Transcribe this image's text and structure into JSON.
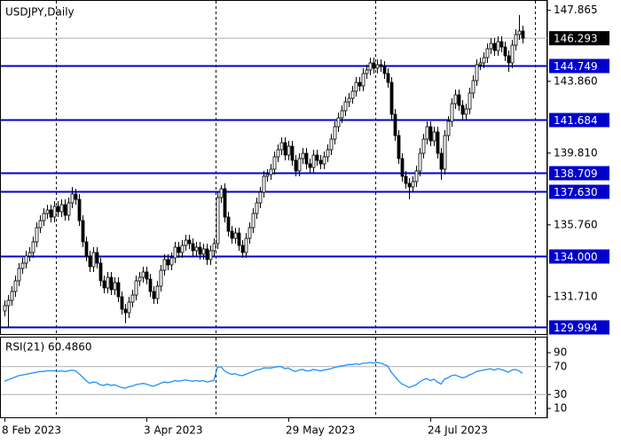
{
  "chart_data": {
    "type": "candlestick",
    "title": "USDJPY,Daily",
    "categories": [
      "8 Feb 2023",
      null,
      null,
      null,
      null,
      null,
      null,
      null,
      null,
      null,
      null,
      null,
      null,
      null,
      null,
      null,
      null,
      null,
      null,
      null,
      null,
      null,
      null,
      null,
      null,
      null,
      null,
      null,
      null,
      null,
      null,
      null,
      null,
      null,
      null,
      null,
      null,
      null,
      null,
      null,
      "3 Apr 2023",
      null,
      null,
      null,
      null,
      null,
      null,
      null,
      null,
      null,
      null,
      null,
      null,
      null,
      null,
      null,
      null,
      null,
      null,
      null,
      null,
      null,
      null,
      null,
      null,
      null,
      null,
      null,
      null,
      null,
      null,
      null,
      null,
      null,
      null,
      null,
      null,
      null,
      null,
      null,
      "29 May 2023",
      null,
      null,
      null,
      null,
      null,
      null,
      null,
      null,
      null,
      null,
      null,
      null,
      null,
      null,
      null,
      null,
      null,
      null,
      null,
      null,
      null,
      null,
      null,
      null,
      null,
      null,
      null,
      null,
      null,
      null,
      null,
      null,
      null,
      null,
      null,
      null,
      null,
      null,
      null,
      "24 Jul 2023",
      null,
      null,
      null,
      null,
      null,
      null,
      null,
      null,
      null,
      null,
      null,
      null,
      null,
      null,
      null,
      null,
      null,
      null,
      null,
      null,
      null,
      null,
      null,
      null,
      null,
      null
    ],
    "open": [
      130.9,
      131.2,
      131.5,
      132.0,
      132.6,
      133.3,
      133.6,
      134.0,
      134.2,
      134.8,
      135.6,
      136.0,
      136.4,
      136.6,
      136.2,
      136.8,
      136.5,
      136.9,
      136.3,
      137.0,
      137.5,
      137.2,
      136.0,
      134.8,
      134.0,
      133.4,
      134.2,
      133.6,
      132.6,
      132.2,
      132.8,
      132.1,
      132.5,
      131.7,
      131.0,
      130.8,
      131.4,
      131.8,
      132.6,
      132.8,
      133.1,
      132.7,
      132.0,
      131.6,
      132.3,
      133.2,
      133.8,
      133.5,
      133.9,
      134.5,
      134.2,
      134.6,
      134.9,
      134.7,
      134.3,
      134.5,
      134.1,
      134.4,
      133.8,
      134.3,
      134.7,
      137.3,
      137.8,
      136.2,
      135.4,
      135.0,
      135.3,
      134.6,
      134.2,
      135.0,
      135.6,
      136.4,
      137.0,
      137.6,
      138.5,
      138.6,
      138.9,
      139.6,
      140.0,
      140.4,
      139.7,
      140.2,
      139.4,
      138.8,
      139.5,
      139.8,
      139.2,
      139.0,
      139.7,
      139.4,
      139.2,
      139.6,
      140.0,
      140.6,
      141.3,
      141.8,
      142.2,
      142.7,
      142.9,
      143.3,
      143.8,
      143.6,
      144.3,
      144.5,
      144.9,
      144.6,
      144.8,
      144.7,
      144.3,
      143.8,
      142.0,
      140.8,
      139.5,
      138.5,
      138.1,
      137.9,
      138.2,
      138.8,
      139.8,
      140.6,
      141.3,
      140.5,
      141.0,
      139.8,
      138.9,
      140.8,
      141.6,
      142.6,
      143.1,
      142.5,
      142.0,
      142.3,
      143.2,
      143.9,
      144.8,
      144.9,
      145.2,
      145.7,
      146.0,
      145.6,
      146.1,
      145.8,
      145.3,
      144.9,
      145.9,
      146.5,
      146.7
    ],
    "high": [
      131.5,
      131.8,
      132.3,
      132.9,
      133.6,
      133.9,
      134.3,
      134.5,
      135.1,
      135.9,
      136.3,
      136.7,
      136.9,
      136.9,
      137.1,
      137.1,
      137.2,
      137.2,
      137.3,
      137.9,
      137.8,
      137.5,
      136.3,
      135.1,
      134.3,
      134.5,
      134.5,
      133.9,
      132.9,
      133.1,
      133.1,
      132.8,
      132.8,
      132.0,
      131.3,
      131.7,
      132.1,
      132.9,
      133.1,
      133.4,
      133.4,
      133.0,
      132.3,
      132.6,
      133.5,
      134.1,
      134.1,
      134.2,
      134.8,
      134.8,
      134.9,
      135.2,
      135.2,
      135.0,
      134.8,
      134.8,
      134.7,
      134.7,
      134.6,
      135.0,
      137.6,
      138.0,
      138.1,
      136.5,
      135.7,
      135.6,
      135.6,
      134.9,
      135.3,
      135.9,
      136.7,
      137.3,
      137.9,
      138.8,
      138.9,
      139.2,
      139.9,
      140.3,
      140.7,
      140.7,
      140.5,
      140.5,
      139.7,
      139.8,
      140.1,
      140.1,
      139.5,
      140.0,
      140.0,
      139.7,
      139.9,
      140.3,
      140.9,
      141.6,
      142.1,
      142.5,
      143.0,
      143.2,
      143.6,
      144.1,
      144.1,
      144.6,
      144.8,
      145.2,
      145.2,
      145.1,
      145.1,
      145.0,
      144.6,
      144.1,
      142.3,
      141.1,
      139.8,
      138.8,
      138.4,
      138.5,
      139.1,
      140.1,
      140.9,
      141.6,
      141.6,
      141.3,
      141.3,
      140.1,
      141.1,
      141.9,
      142.9,
      143.4,
      143.4,
      142.8,
      142.6,
      143.5,
      144.2,
      145.1,
      145.2,
      145.5,
      146.0,
      146.3,
      146.3,
      146.4,
      146.4,
      146.1,
      145.6,
      146.2,
      146.8,
      147.6,
      147.0
    ],
    "low": [
      130.6,
      130.0,
      131.2,
      131.7,
      132.3,
      133.0,
      133.3,
      133.7,
      133.9,
      134.5,
      135.3,
      135.7,
      136.1,
      135.9,
      135.9,
      136.2,
      136.2,
      136.0,
      136.0,
      136.7,
      136.9,
      135.7,
      134.5,
      133.7,
      133.1,
      133.1,
      133.3,
      132.3,
      131.9,
      131.9,
      131.8,
      131.8,
      131.4,
      130.7,
      130.2,
      130.5,
      131.1,
      131.5,
      132.3,
      132.5,
      132.4,
      131.7,
      131.3,
      131.3,
      132.0,
      132.9,
      133.2,
      133.2,
      133.6,
      133.9,
      133.9,
      134.3,
      134.4,
      134.0,
      134.0,
      133.8,
      133.8,
      133.5,
      133.5,
      134.0,
      134.4,
      137.0,
      135.9,
      135.1,
      134.7,
      134.7,
      134.3,
      133.9,
      133.9,
      134.7,
      135.3,
      136.1,
      136.7,
      137.3,
      138.2,
      138.3,
      138.6,
      139.3,
      139.7,
      139.4,
      139.4,
      139.1,
      138.5,
      138.5,
      139.2,
      138.9,
      138.7,
      138.7,
      139.1,
      138.9,
      138.9,
      139.3,
      139.7,
      140.3,
      141.0,
      141.5,
      141.9,
      142.4,
      142.6,
      143.0,
      143.3,
      143.3,
      144.0,
      144.2,
      144.3,
      144.3,
      144.4,
      144.0,
      143.5,
      141.7,
      140.5,
      139.2,
      138.2,
      137.8,
      137.2,
      137.6,
      137.9,
      138.5,
      139.5,
      140.3,
      140.2,
      140.2,
      139.5,
      138.3,
      138.6,
      140.5,
      141.3,
      142.3,
      142.2,
      141.7,
      141.7,
      142.0,
      142.9,
      143.6,
      144.5,
      144.6,
      144.9,
      145.4,
      145.3,
      145.3,
      145.5,
      145.0,
      144.4,
      144.6,
      145.6,
      146.2,
      146.0
    ],
    "close": [
      131.2,
      131.5,
      132.0,
      132.6,
      133.3,
      133.6,
      134.0,
      134.2,
      134.8,
      135.6,
      136.0,
      136.4,
      136.6,
      136.2,
      136.8,
      136.5,
      136.9,
      136.3,
      137.0,
      137.5,
      137.2,
      136.0,
      134.8,
      134.0,
      133.4,
      134.2,
      133.6,
      132.6,
      132.2,
      132.8,
      132.1,
      132.5,
      131.7,
      131.0,
      130.8,
      131.4,
      131.8,
      132.6,
      132.8,
      133.1,
      132.7,
      132.0,
      131.6,
      132.3,
      133.2,
      133.8,
      133.5,
      133.9,
      134.5,
      134.2,
      134.6,
      134.9,
      134.7,
      134.3,
      134.5,
      134.1,
      134.4,
      133.8,
      134.3,
      134.7,
      137.3,
      137.8,
      136.2,
      135.4,
      135.0,
      135.3,
      134.6,
      134.2,
      135.0,
      135.6,
      136.4,
      137.0,
      137.6,
      138.5,
      138.6,
      138.9,
      139.6,
      140.0,
      140.4,
      139.7,
      140.2,
      139.4,
      138.8,
      139.5,
      139.8,
      139.2,
      139.0,
      139.7,
      139.4,
      139.2,
      139.6,
      140.0,
      140.6,
      141.3,
      141.8,
      142.2,
      142.7,
      142.9,
      143.3,
      143.8,
      143.6,
      144.3,
      144.5,
      144.9,
      144.6,
      144.8,
      144.7,
      144.3,
      143.8,
      142.0,
      140.8,
      139.5,
      138.5,
      138.1,
      137.9,
      138.2,
      138.8,
      139.8,
      140.6,
      141.3,
      140.5,
      141.0,
      139.8,
      138.9,
      140.8,
      141.6,
      142.6,
      143.1,
      142.5,
      142.0,
      142.3,
      143.2,
      143.9,
      144.8,
      144.9,
      145.2,
      145.7,
      146.0,
      145.6,
      146.1,
      145.8,
      145.3,
      144.9,
      145.9,
      146.5,
      146.7,
      146.293
    ],
    "bull_color": "#ffffff",
    "bear_color": "#000000",
    "outline_color": "#000000",
    "ylim": [
      129.55,
      148.45
    ],
    "yticks": [
      147.865,
      {
        "value": 143.86,
        "label": "143.860"
      },
      {
        "value": 139.81,
        "label": "139.810"
      },
      {
        "value": 135.76,
        "label": "135.760"
      },
      {
        "value": 131.71,
        "label": "131.710"
      }
    ],
    "levels": [
      144.749,
      141.684,
      138.709,
      {
        "value": 137.63,
        "label": "137.630"
      },
      {
        "value": 134,
        "label": "134.000"
      },
      129.994
    ],
    "level_color": "#0000cc",
    "grid": true,
    "rsi": {
      "type": "line",
      "title": "RSI(21) 60.4860",
      "color": "#1e90ff",
      "values": [
        49,
        51,
        53,
        55,
        57,
        58,
        59,
        60,
        61,
        62,
        63,
        63,
        64,
        64,
        64,
        63,
        64,
        63,
        64,
        65,
        64,
        60,
        55,
        50,
        46,
        48,
        47,
        44,
        43,
        45,
        43,
        44,
        42,
        40,
        39,
        41,
        42,
        44,
        45,
        46,
        45,
        43,
        42,
        44,
        46,
        48,
        47,
        48,
        50,
        49,
        50,
        51,
        50,
        49,
        50,
        49,
        50,
        48,
        49,
        50,
        69,
        70,
        64,
        61,
        59,
        60,
        58,
        57,
        59,
        61,
        63,
        65,
        66,
        68,
        68,
        68,
        69,
        70,
        70,
        67,
        68,
        65,
        63,
        65,
        66,
        64,
        64,
        66,
        65,
        64,
        65,
        66,
        67,
        69,
        70,
        71,
        72,
        73,
        73,
        74,
        73,
        75,
        75,
        76,
        75,
        76,
        75,
        73,
        71,
        62,
        56,
        50,
        45,
        43,
        40,
        42,
        44,
        48,
        51,
        53,
        50,
        52,
        48,
        45,
        52,
        54,
        57,
        58,
        56,
        54,
        55,
        58,
        60,
        63,
        64,
        65,
        66,
        67,
        65,
        67,
        66,
        64,
        62,
        65,
        66,
        64,
        60.486
      ],
      "ylim": [
        -4,
        113
      ],
      "yticks": [
        90,
        70,
        30,
        10
      ],
      "levels": [
        70,
        30
      ]
    }
  }
}
